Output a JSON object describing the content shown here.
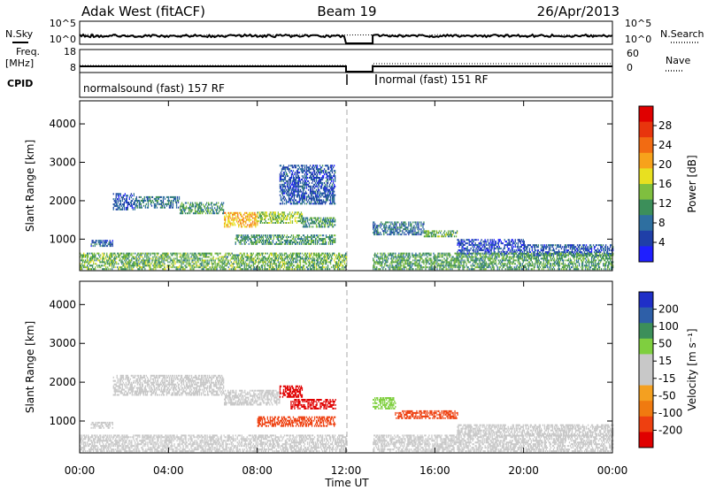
{
  "header": {
    "station": "Adak West (fitACF)",
    "beam": "Beam 19",
    "date": "26/Apr/2013"
  },
  "status_panels": {
    "nsky_label": "N.Sky",
    "nsearch_label": "N.Search",
    "noise_left_ticks": [
      "10^5",
      "10^0"
    ],
    "noise_right_ticks": [
      "10^5",
      "10^0"
    ],
    "freq_label_1": "Freq.",
    "freq_label_2": "[MHz]",
    "freq_ticks": [
      "18",
      "8"
    ],
    "nave_label": "Nave",
    "nave_ticks": [
      "60",
      "0"
    ],
    "cpid_label": "CPID",
    "cpid_1": "normalsound (fast) 157 RF",
    "cpid_2": "normal (fast) 151 RF"
  },
  "colorbars": {
    "power": {
      "label": "Power [dB]",
      "colors": [
        "#1f1fff",
        "#1f3fa8",
        "#2e6fa0",
        "#3c8f5a",
        "#7fbf3f",
        "#e8e020",
        "#f7a21b",
        "#f26b12",
        "#e8350d",
        "#e00000"
      ],
      "ticks": [
        "28",
        "24",
        "20",
        "16",
        "12",
        "8",
        "4"
      ]
    },
    "velocity": {
      "label": "Velocity [m s⁻¹]",
      "colors": [
        "#e00000",
        "#ee4010",
        "#f07a10",
        "#f4a020",
        "#c8c8c8",
        "#c8c8c8",
        "#7fcf3f",
        "#3c8f5a",
        "#2e5fa8",
        "#1f2fc8"
      ],
      "ticks": [
        "200",
        "100",
        "50",
        "15",
        "-15",
        "-50",
        "-100",
        "-200"
      ]
    }
  },
  "chart_data": [
    {
      "type": "heatmap",
      "title": "",
      "quantity": "Power",
      "xlabel": "Time UT",
      "ylabel": "Slant Range [km]",
      "xlim_hours": [
        0,
        24
      ],
      "x_ticks": [
        "00:00",
        "04:00",
        "08:00",
        "12:00",
        "16:00",
        "20:00",
        "00:00"
      ],
      "ylim_km": [
        180,
        4600
      ],
      "y_ticks": [
        "1000",
        "2000",
        "3000",
        "4000"
      ],
      "data_gap_hours": [
        12.0,
        13.2
      ],
      "scatter_regions": [
        {
          "t": [
            1.5,
            2.5
          ],
          "range_km": [
            1750,
            2200
          ],
          "value_db": 6
        },
        {
          "t": [
            2.5,
            4.5
          ],
          "range_km": [
            1800,
            2100
          ],
          "value_db": 9
        },
        {
          "t": [
            4.5,
            6.5
          ],
          "range_km": [
            1650,
            1950
          ],
          "value_db": 11
        },
        {
          "t": [
            6.5,
            8.0
          ],
          "range_km": [
            1300,
            1700
          ],
          "value_db": 20
        },
        {
          "t": [
            8.0,
            10.0
          ],
          "range_km": [
            1400,
            1700
          ],
          "value_db": 15
        },
        {
          "t": [
            10.0,
            11.5
          ],
          "range_km": [
            1300,
            1550
          ],
          "value_db": 11
        },
        {
          "t": [
            7.0,
            11.5
          ],
          "range_km": [
            850,
            1100
          ],
          "value_db": 11
        },
        {
          "t": [
            0.5,
            1.5
          ],
          "range_km": [
            800,
            950
          ],
          "value_db": 6
        },
        {
          "t": [
            13.2,
            15.5
          ],
          "range_km": [
            1100,
            1450
          ],
          "value_db": 8
        },
        {
          "t": [
            15.5,
            17.0
          ],
          "range_km": [
            1050,
            1200
          ],
          "value_db": 13
        },
        {
          "t": [
            17.0,
            20.0
          ],
          "range_km": [
            600,
            1000
          ],
          "value_db": 5
        },
        {
          "t": [
            20.0,
            24.0
          ],
          "range_km": [
            550,
            850
          ],
          "value_db": 6
        },
        {
          "t": [
            0.0,
            12.0
          ],
          "range_km": [
            200,
            650
          ],
          "value_db": 13
        },
        {
          "t": [
            13.2,
            24.0
          ],
          "range_km": [
            200,
            650
          ],
          "value_db": 12
        },
        {
          "t": [
            9.0,
            11.5
          ],
          "range_km": [
            1900,
            2900
          ],
          "value_db": 6
        }
      ]
    },
    {
      "type": "heatmap",
      "title": "",
      "quantity": "Velocity",
      "xlabel": "Time UT",
      "ylabel": "Slant Range [km]",
      "xlim_hours": [
        0,
        24
      ],
      "x_ticks": [
        "00:00",
        "04:00",
        "08:00",
        "12:00",
        "16:00",
        "20:00",
        "00:00"
      ],
      "ylim_km": [
        180,
        4600
      ],
      "y_ticks": [
        "1000",
        "2000",
        "3000",
        "4000"
      ],
      "data_gap_hours": [
        12.0,
        13.2
      ],
      "scatter_regions": [
        {
          "t": [
            1.5,
            6.5
          ],
          "range_km": [
            1650,
            2150
          ],
          "value_ms": 0
        },
        {
          "t": [
            6.5,
            9.0
          ],
          "range_km": [
            1400,
            1800
          ],
          "value_ms": 0
        },
        {
          "t": [
            9.0,
            10.0
          ],
          "range_km": [
            1600,
            1900
          ],
          "value_ms": -220
        },
        {
          "t": [
            9.5,
            11.5
          ],
          "range_km": [
            1300,
            1550
          ],
          "value_ms": -220
        },
        {
          "t": [
            8.0,
            11.5
          ],
          "range_km": [
            850,
            1100
          ],
          "value_ms": -60
        },
        {
          "t": [
            0.5,
            1.5
          ],
          "range_km": [
            800,
            950
          ],
          "value_ms": 0
        },
        {
          "t": [
            13.2,
            14.2
          ],
          "range_km": [
            1300,
            1600
          ],
          "value_ms": 40
        },
        {
          "t": [
            14.2,
            17.0
          ],
          "range_km": [
            1050,
            1250
          ],
          "value_ms": -60
        },
        {
          "t": [
            17.0,
            24.0
          ],
          "range_km": [
            600,
            900
          ],
          "value_ms": 0
        },
        {
          "t": [
            0.0,
            12.0
          ],
          "range_km": [
            200,
            650
          ],
          "value_ms": 0
        },
        {
          "t": [
            13.2,
            24.0
          ],
          "range_km": [
            200,
            650
          ],
          "value_ms": 0
        }
      ]
    }
  ]
}
